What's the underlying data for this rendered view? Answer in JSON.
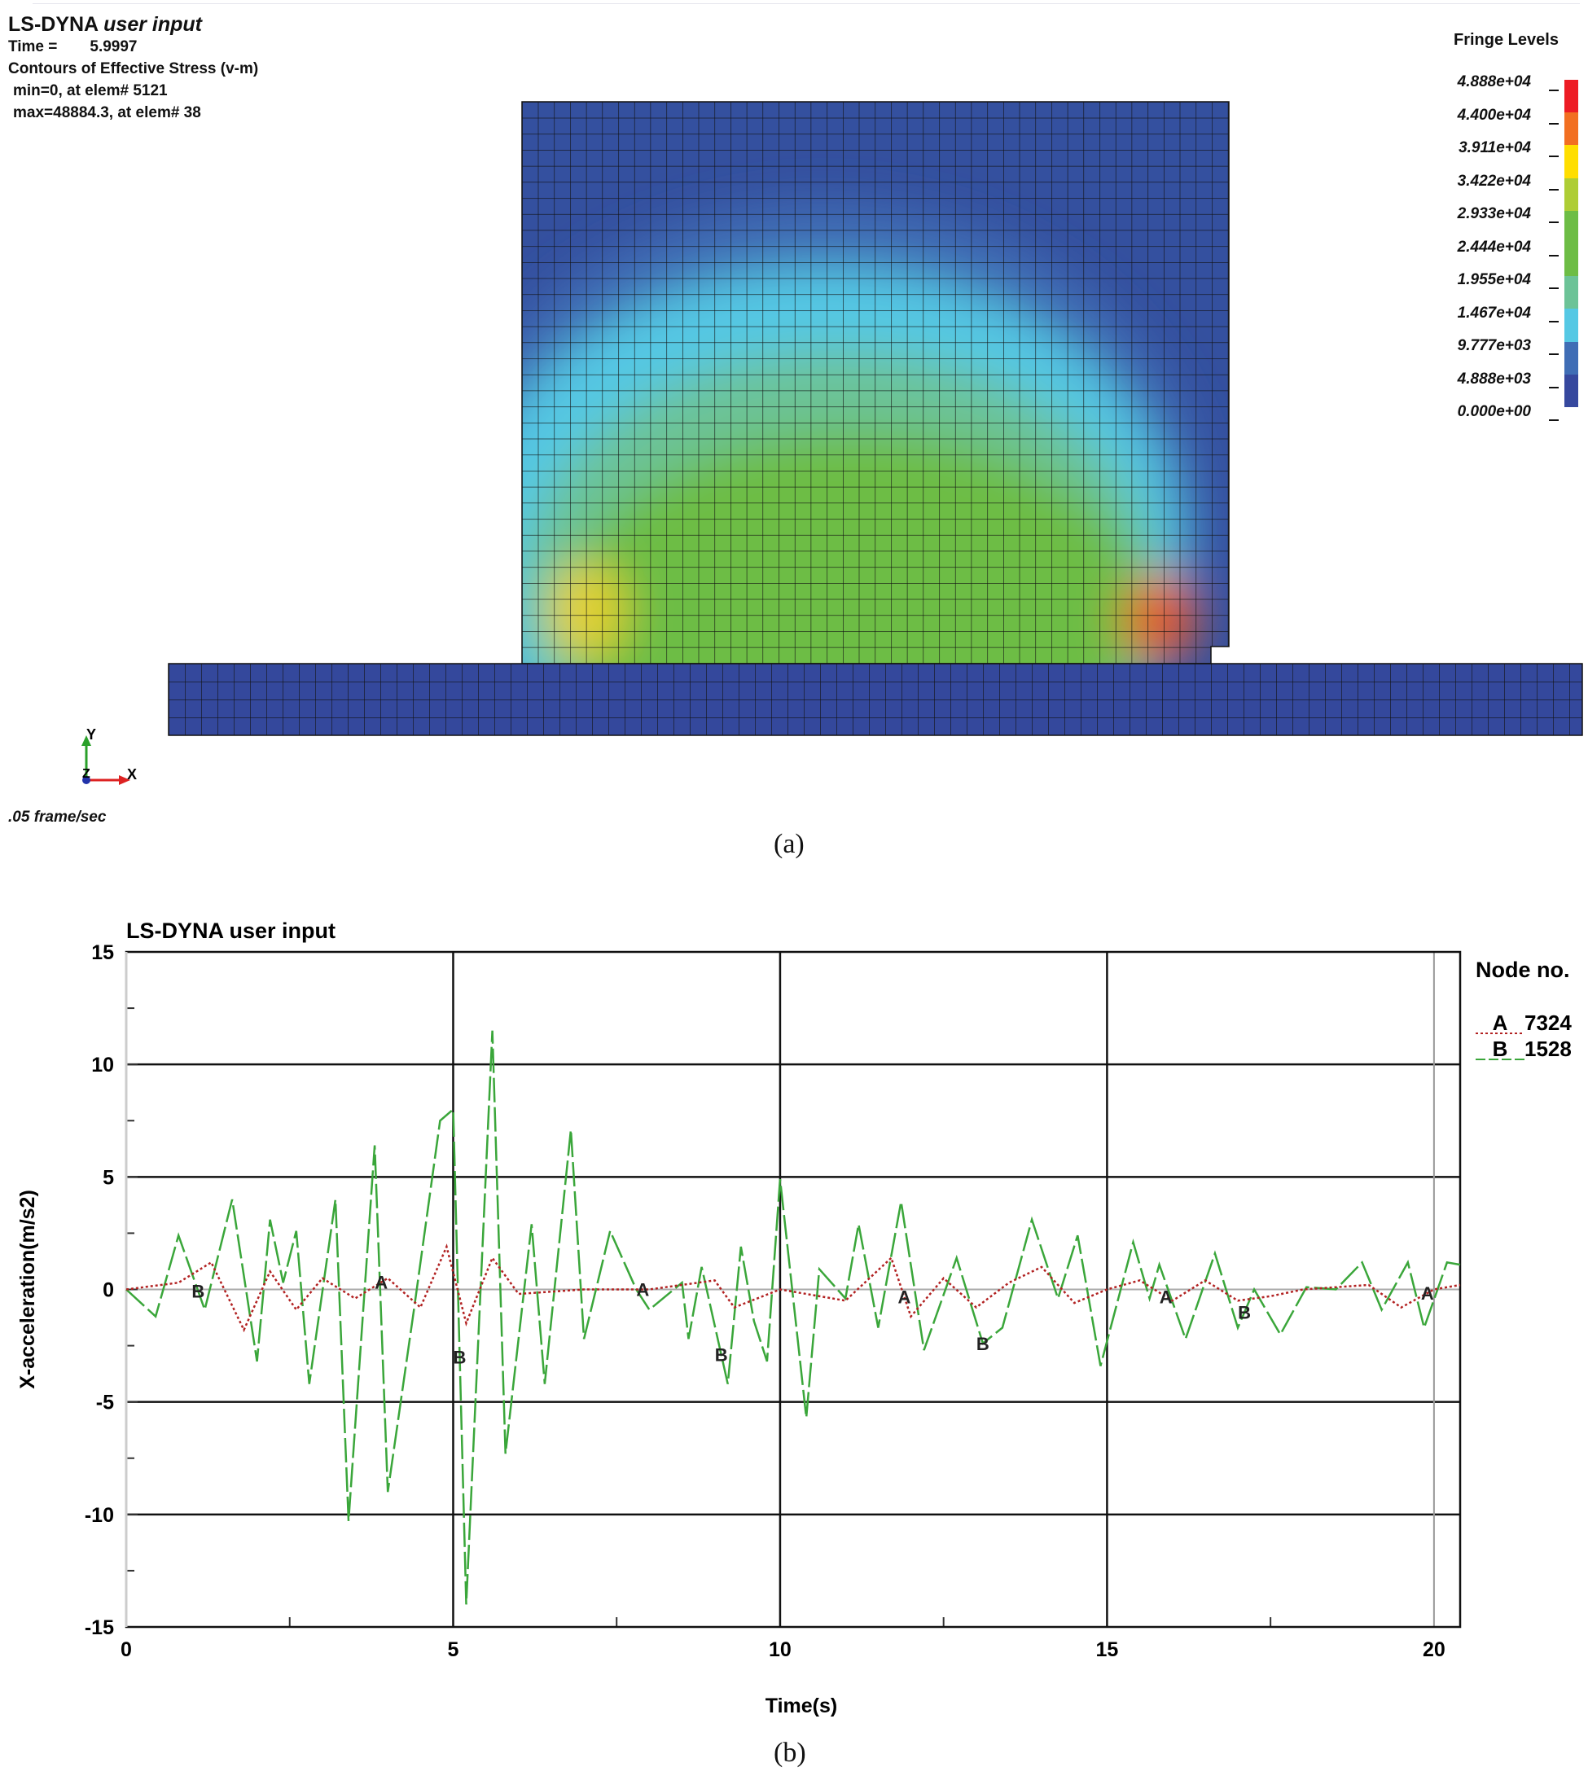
{
  "panel_a": {
    "title_main": "LS-DYNA",
    "title_rest": "user input",
    "time_label": "Time =",
    "time_value": "5.9997",
    "contour_label": "Contours of Effective Stress (v-m)",
    "min_text": "min=0, at elem# 5121",
    "max_text": "max=48884.3, at elem# 38",
    "frame_rate": ".05 frame/sec",
    "axis_y": "Y",
    "axis_x": "X",
    "axis_z": "Z",
    "legend_title": "Fringe Levels",
    "fringe_levels": [
      "4.888e+04",
      "4.400e+04",
      "3.911e+04",
      "3.422e+04",
      "2.933e+04",
      "2.444e+04",
      "1.955e+04",
      "1.467e+04",
      "9.777e+03",
      "4.888e+03",
      "0.000e+00"
    ],
    "fringe_colors": [
      "#ed1c24",
      "#f26f21",
      "#ffde00",
      "#aecd35",
      "#6dbd45",
      "#6dbd45",
      "#6cc397",
      "#55c8e4",
      "#3f6db5",
      "#36489e"
    ],
    "caption": "(a)"
  },
  "panel_b": {
    "caption": "(b)",
    "chart_data": {
      "type": "line",
      "title": "LS-DYNA user input",
      "xlabel": "Time(s)",
      "ylabel": "X-acceleration(m/s2)",
      "xlim": [
        0,
        20.4
      ],
      "ylim": [
        -15,
        15
      ],
      "xticks": [
        "0",
        "5",
        "10",
        "15",
        "20"
      ],
      "yticks": [
        "15",
        "10",
        "5",
        "0",
        "-5",
        "-10",
        "-15"
      ],
      "legend_title": "Node no.",
      "legend_position": "right",
      "series": [
        {
          "name": "A",
          "node": "7324",
          "color": "#b22222",
          "style": "dotted",
          "markers_at": [
            3.9,
            7.9,
            11.9,
            15.9,
            19.9
          ],
          "points": [
            [
              0,
              0
            ],
            [
              0.8,
              0.3
            ],
            [
              1.3,
              1.2
            ],
            [
              1.8,
              -1.8
            ],
            [
              2.2,
              0.8
            ],
            [
              2.6,
              -0.9
            ],
            [
              3.0,
              0.5
            ],
            [
              3.5,
              -0.4
            ],
            [
              4.0,
              0.5
            ],
            [
              4.5,
              -0.8
            ],
            [
              4.9,
              1.9
            ],
            [
              5.2,
              -1.5
            ],
            [
              5.6,
              1.4
            ],
            [
              6.0,
              -0.2
            ],
            [
              7.0,
              0
            ],
            [
              8.0,
              0
            ],
            [
              9.0,
              0.4
            ],
            [
              9.3,
              -0.8
            ],
            [
              10,
              0
            ],
            [
              11,
              -0.5
            ],
            [
              11.7,
              1.4
            ],
            [
              12.0,
              -1.2
            ],
            [
              12.5,
              0.5
            ],
            [
              13,
              -0.8
            ],
            [
              13.5,
              0.3
            ],
            [
              14,
              1.0
            ],
            [
              14.5,
              -0.6
            ],
            [
              15,
              0
            ],
            [
              15.5,
              0.4
            ],
            [
              16,
              -0.5
            ],
            [
              16.5,
              0.4
            ],
            [
              17,
              -0.5
            ],
            [
              17.5,
              -0.3
            ],
            [
              18,
              0
            ],
            [
              19,
              0.2
            ],
            [
              19.5,
              -0.8
            ],
            [
              20,
              0
            ],
            [
              20.4,
              0.2
            ]
          ]
        },
        {
          "name": "B",
          "node": "1528",
          "color": "#3aa63a",
          "style": "dashed",
          "markers_at": [
            1.1,
            5.1,
            9.1,
            13.1,
            17.1
          ],
          "points": [
            [
              0,
              0
            ],
            [
              0.45,
              -1.2
            ],
            [
              0.8,
              2.4
            ],
            [
              1.2,
              -0.9
            ],
            [
              1.62,
              4.0
            ],
            [
              2.0,
              -3.2
            ],
            [
              2.2,
              3.1
            ],
            [
              2.4,
              0.3
            ],
            [
              2.6,
              2.6
            ],
            [
              2.8,
              -4.2
            ],
            [
              3.2,
              4.0
            ],
            [
              3.4,
              -10.3
            ],
            [
              3.8,
              6.4
            ],
            [
              4.0,
              -9.0
            ],
            [
              4.4,
              -0.9
            ],
            [
              4.8,
              7.5
            ],
            [
              5.0,
              8.0
            ],
            [
              5.2,
              -14.0
            ],
            [
              5.6,
              11.5
            ],
            [
              5.8,
              -7.3
            ],
            [
              6.2,
              2.9
            ],
            [
              6.4,
              -4.2
            ],
            [
              6.8,
              7.1
            ],
            [
              7.0,
              -2.2
            ],
            [
              7.4,
              2.6
            ],
            [
              7.8,
              0
            ],
            [
              8.0,
              -0.9
            ],
            [
              8.5,
              0.3
            ],
            [
              8.6,
              -2.2
            ],
            [
              8.8,
              1.0
            ],
            [
              9.2,
              -4.2
            ],
            [
              9.4,
              1.9
            ],
            [
              9.6,
              -1.4
            ],
            [
              9.8,
              -3.2
            ],
            [
              10.0,
              4.9
            ],
            [
              10.4,
              -5.7
            ],
            [
              10.6,
              0.9
            ],
            [
              11.0,
              -0.4
            ],
            [
              11.2,
              2.9
            ],
            [
              11.5,
              -1.7
            ],
            [
              11.85,
              3.9
            ],
            [
              12.2,
              -2.7
            ],
            [
              12.7,
              1.4
            ],
            [
              13.1,
              -2.4
            ],
            [
              13.4,
              -1.7
            ],
            [
              13.85,
              3.1
            ],
            [
              14.25,
              -0.4
            ],
            [
              14.55,
              2.4
            ],
            [
              14.9,
              -3.4
            ],
            [
              15.4,
              2.1
            ],
            [
              15.65,
              -0.4
            ],
            [
              15.8,
              1.1
            ],
            [
              16.2,
              -2.2
            ],
            [
              16.65,
              1.6
            ],
            [
              17.0,
              -1.7
            ],
            [
              17.25,
              0
            ],
            [
              17.65,
              -2.0
            ],
            [
              18.05,
              0.1
            ],
            [
              18.5,
              0
            ],
            [
              18.9,
              1.2
            ],
            [
              19.2,
              -0.9
            ],
            [
              19.6,
              1.2
            ],
            [
              19.85,
              -1.7
            ],
            [
              20.2,
              1.2
            ],
            [
              20.4,
              1.1
            ]
          ]
        }
      ]
    }
  }
}
